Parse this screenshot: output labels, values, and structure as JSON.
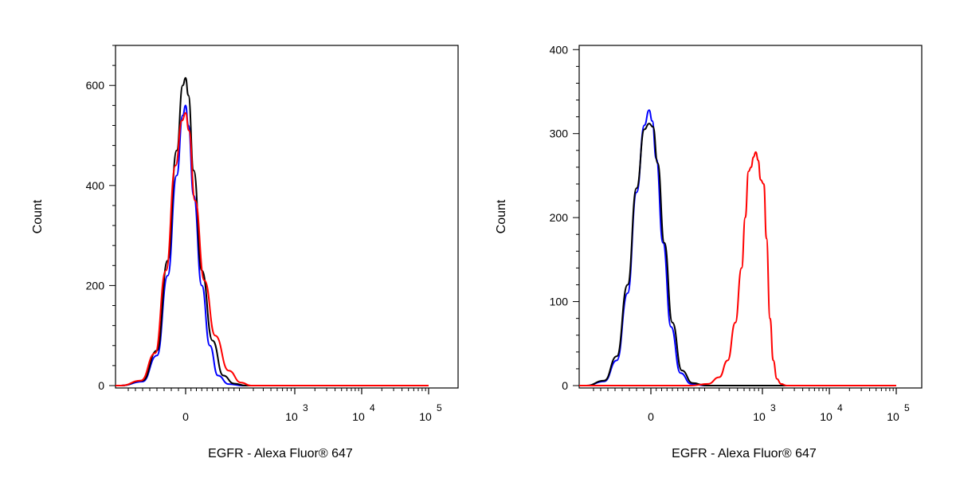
{
  "chart_data": [
    {
      "type": "line",
      "xlabel": "EGFR - Alexa Fluor® 647",
      "ylabel": "Count",
      "ylim": [
        0,
        680
      ],
      "x_scale": "biexponential",
      "y_ticks": [
        "0",
        "200",
        "400",
        "600"
      ],
      "y_tick_values": [
        0,
        200,
        400,
        600
      ],
      "x_ticks": [
        {
          "value": 0,
          "base": "0",
          "exp": ""
        },
        {
          "value": 1000,
          "base": "10",
          "exp": "3"
        },
        {
          "value": 10000,
          "base": "10",
          "exp": "4"
        },
        {
          "value": 100000,
          "base": "10",
          "exp": "5"
        }
      ],
      "series": [
        {
          "color": "#0000ff",
          "points": [
            [
              -180,
              0
            ],
            [
              -120,
              8
            ],
            [
              -80,
              60
            ],
            [
              -50,
              220
            ],
            [
              -25,
              420
            ],
            [
              -8,
              540
            ],
            [
              0,
              560
            ],
            [
              10,
              520
            ],
            [
              30,
              380
            ],
            [
              60,
              200
            ],
            [
              90,
              80
            ],
            [
              120,
              20
            ],
            [
              160,
              3
            ],
            [
              220,
              0
            ]
          ]
        },
        {
          "color": "#000000",
          "points": [
            [
              -180,
              0
            ],
            [
              -120,
              10
            ],
            [
              -80,
              70
            ],
            [
              -50,
              250
            ],
            [
              -25,
              470
            ],
            [
              -8,
              600
            ],
            [
              0,
              615
            ],
            [
              10,
              580
            ],
            [
              30,
              430
            ],
            [
              60,
              230
            ],
            [
              100,
              90
            ],
            [
              140,
              20
            ],
            [
              180,
              4
            ],
            [
              240,
              0
            ]
          ]
        },
        {
          "color": "#ff0000",
          "points": [
            [
              -180,
              0
            ],
            [
              -125,
              10
            ],
            [
              -85,
              65
            ],
            [
              -55,
              230
            ],
            [
              -28,
              440
            ],
            [
              -10,
              530
            ],
            [
              0,
              545
            ],
            [
              12,
              510
            ],
            [
              35,
              370
            ],
            [
              70,
              210
            ],
            [
              110,
              100
            ],
            [
              160,
              30
            ],
            [
              210,
              6
            ],
            [
              280,
              0
            ]
          ]
        }
      ]
    },
    {
      "type": "line",
      "xlabel": "EGFR - Alexa Fluor® 647",
      "ylabel": "Count",
      "ylim": [
        0,
        405
      ],
      "x_scale": "biexponential",
      "y_ticks": [
        "0",
        "100",
        "200",
        "300",
        "400"
      ],
      "y_tick_values": [
        0,
        100,
        200,
        300,
        400
      ],
      "x_ticks": [
        {
          "value": 0,
          "base": "0",
          "exp": ""
        },
        {
          "value": 1000,
          "base": "10",
          "exp": "3"
        },
        {
          "value": 10000,
          "base": "10",
          "exp": "4"
        },
        {
          "value": 100000,
          "base": "10",
          "exp": "5"
        }
      ],
      "series": [
        {
          "color": "#0000ff",
          "points": [
            [
              -180,
              0
            ],
            [
              -130,
              5
            ],
            [
              -95,
              30
            ],
            [
              -65,
              110
            ],
            [
              -40,
              230
            ],
            [
              -18,
              310
            ],
            [
              -5,
              328
            ],
            [
              5,
              315
            ],
            [
              20,
              270
            ],
            [
              45,
              170
            ],
            [
              75,
              70
            ],
            [
              110,
              15
            ],
            [
              150,
              2
            ],
            [
              200,
              0
            ]
          ]
        },
        {
          "color": "#000000",
          "points": [
            [
              -180,
              0
            ],
            [
              -130,
              6
            ],
            [
              -95,
              35
            ],
            [
              -65,
              120
            ],
            [
              -40,
              235
            ],
            [
              -18,
              305
            ],
            [
              -5,
              312
            ],
            [
              8,
              308
            ],
            [
              25,
              265
            ],
            [
              50,
              170
            ],
            [
              80,
              75
            ],
            [
              115,
              18
            ],
            [
              155,
              3
            ],
            [
              210,
              0
            ]
          ]
        },
        {
          "color": "#ff0000",
          "points": [
            [
              150,
              0
            ],
            [
              220,
              2
            ],
            [
              300,
              10
            ],
            [
              380,
              30
            ],
            [
              470,
              75
            ],
            [
              560,
              140
            ],
            [
              620,
              200
            ],
            [
              680,
              255
            ],
            [
              730,
              260
            ],
            [
              780,
              272
            ],
            [
              830,
              278
            ],
            [
              890,
              268
            ],
            [
              950,
              245
            ],
            [
              1050,
              240
            ],
            [
              1150,
              175
            ],
            [
              1300,
              80
            ],
            [
              1450,
              30
            ],
            [
              1650,
              8
            ],
            [
              1900,
              2
            ],
            [
              2300,
              0
            ],
            [
              100000,
              0
            ]
          ]
        }
      ]
    }
  ]
}
